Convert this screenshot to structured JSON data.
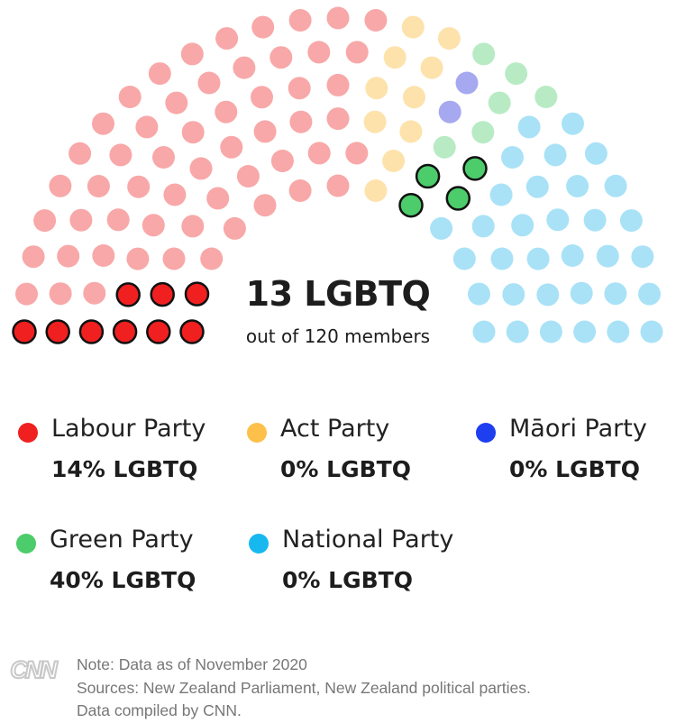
{
  "chart_data": {
    "type": "parliament",
    "total_seats": 120,
    "center_label": "13 LGBTQ",
    "center_sublabel": "out of 120 members",
    "series": [
      {
        "name": "Labour Party",
        "seats": 65,
        "lgbtq": 9,
        "pct_label": "14% LGBTQ",
        "color": "#f02020",
        "light": "#f8a8a8"
      },
      {
        "name": "Act Party",
        "seats": 10,
        "lgbtq": 0,
        "pct_label": "0% LGBTQ",
        "color": "#fdc04a",
        "light": "#fde2ac"
      },
      {
        "name": "Māori Party",
        "seats": 2,
        "lgbtq": 0,
        "pct_label": "0% LGBTQ",
        "color": "#1e3ff0",
        "light": "#a6a8f0"
      },
      {
        "name": "Green Party",
        "seats": 10,
        "lgbtq": 4,
        "pct_label": "40% LGBTQ",
        "color": "#4ccc6a",
        "light": "#b8ebc4"
      },
      {
        "name": "National Party",
        "seats": 33,
        "lgbtq": 0,
        "pct_label": "0% LGBTQ",
        "color": "#16b8ef",
        "light": "#a9e2f7"
      }
    ]
  },
  "footer": {
    "logo": "CNN",
    "note": "Note: Data as of November 2020",
    "sources": "Sources: New Zealand Parliament, New Zealand political parties.",
    "compiled": "Data compiled by CNN."
  }
}
